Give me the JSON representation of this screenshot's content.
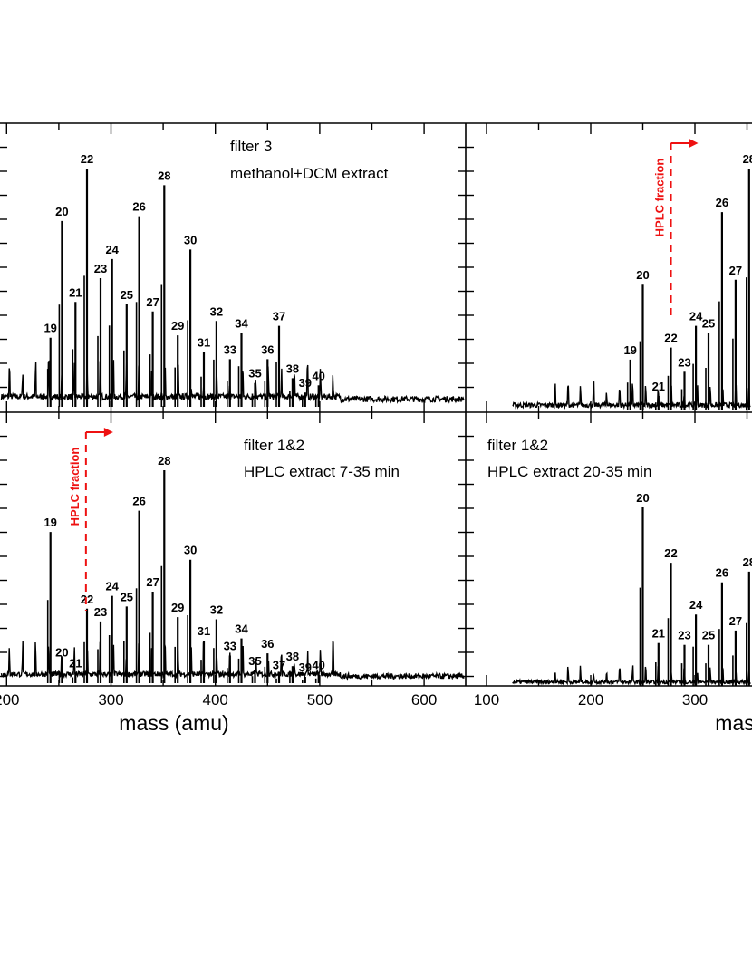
{
  "chart_data": {
    "type": "line",
    "xlabel": "mass (amu)",
    "colors": {
      "trace": "#000000",
      "hplc": "#ee1111"
    },
    "panels": [
      {
        "id": "top-left",
        "caption": [
          "filter 3",
          "methanol+DCM extract"
        ],
        "xlim": [
          160,
          640
        ],
        "hplc_marker": null,
        "peaks": [
          {
            "label": "19",
            "x": 242,
            "y": 0.29
          },
          {
            "label": "20",
            "x": 253,
            "y": 0.78
          },
          {
            "label": "21",
            "x": 266,
            "y": 0.44
          },
          {
            "label": "22",
            "x": 277,
            "y": 1.0
          },
          {
            "label": "23",
            "x": 290,
            "y": 0.54
          },
          {
            "label": "24",
            "x": 301,
            "y": 0.62
          },
          {
            "label": "25",
            "x": 315,
            "y": 0.43
          },
          {
            "label": "26",
            "x": 327,
            "y": 0.8
          },
          {
            "label": "27",
            "x": 340,
            "y": 0.4
          },
          {
            "label": "28",
            "x": 351,
            "y": 0.93
          },
          {
            "label": "29",
            "x": 364,
            "y": 0.3
          },
          {
            "label": "30",
            "x": 376,
            "y": 0.66
          },
          {
            "label": "31",
            "x": 389,
            "y": 0.23
          },
          {
            "label": "32",
            "x": 401,
            "y": 0.36
          },
          {
            "label": "33",
            "x": 414,
            "y": 0.2
          },
          {
            "label": "34",
            "x": 425,
            "y": 0.31
          },
          {
            "label": "35",
            "x": 438,
            "y": 0.1
          },
          {
            "label": "36",
            "x": 450,
            "y": 0.2
          },
          {
            "label": "37",
            "x": 461,
            "y": 0.34
          },
          {
            "label": "38",
            "x": 474,
            "y": 0.12
          },
          {
            "label": "39",
            "x": 486,
            "y": 0.06
          },
          {
            "label": "40",
            "x": 499,
            "y": 0.09
          }
        ]
      },
      {
        "id": "top-right",
        "caption": [],
        "xlim": [
          75,
          400
        ],
        "hplc_marker": {
          "label": "HPLC fraction",
          "x": 277
        },
        "peaks": [
          {
            "label": "19",
            "x": 238,
            "y": 0.21
          },
          {
            "label": "20",
            "x": 250,
            "y": 0.52
          },
          {
            "label": "21",
            "x": 265,
            "y": 0.06
          },
          {
            "label": "22",
            "x": 277,
            "y": 0.26
          },
          {
            "label": "23",
            "x": 290,
            "y": 0.16
          },
          {
            "label": "24",
            "x": 301,
            "y": 0.35
          },
          {
            "label": "25",
            "x": 313,
            "y": 0.32
          },
          {
            "label": "26",
            "x": 326,
            "y": 0.82
          },
          {
            "label": "27",
            "x": 339,
            "y": 0.54
          },
          {
            "label": "28",
            "x": 352,
            "y": 1.0
          }
        ]
      },
      {
        "id": "bottom-left",
        "caption": [
          "filter 1&2",
          "HPLC extract 7-35 min"
        ],
        "xlim": [
          160,
          640
        ],
        "hplc_marker": {
          "label": "HPLC fraction",
          "x": 276
        },
        "peaks": [
          {
            "label": "19",
            "x": 242,
            "y": 0.71
          },
          {
            "label": "20",
            "x": 253,
            "y": 0.1
          },
          {
            "label": "21",
            "x": 266,
            "y": 0.05
          },
          {
            "label": "22",
            "x": 277,
            "y": 0.35
          },
          {
            "label": "23",
            "x": 290,
            "y": 0.29
          },
          {
            "label": "24",
            "x": 301,
            "y": 0.41
          },
          {
            "label": "25",
            "x": 315,
            "y": 0.36
          },
          {
            "label": "26",
            "x": 327,
            "y": 0.81
          },
          {
            "label": "27",
            "x": 340,
            "y": 0.43
          },
          {
            "label": "28",
            "x": 351,
            "y": 1.0
          },
          {
            "label": "29",
            "x": 364,
            "y": 0.31
          },
          {
            "label": "30",
            "x": 376,
            "y": 0.58
          },
          {
            "label": "31",
            "x": 389,
            "y": 0.2
          },
          {
            "label": "32",
            "x": 401,
            "y": 0.3
          },
          {
            "label": "33",
            "x": 414,
            "y": 0.13
          },
          {
            "label": "34",
            "x": 425,
            "y": 0.21
          },
          {
            "label": "35",
            "x": 438,
            "y": 0.06
          },
          {
            "label": "36",
            "x": 450,
            "y": 0.14
          },
          {
            "label": "37",
            "x": 461,
            "y": 0.04
          },
          {
            "label": "38",
            "x": 474,
            "y": 0.08
          },
          {
            "label": "39",
            "x": 486,
            "y": 0.03
          },
          {
            "label": "40",
            "x": 499,
            "y": 0.04
          }
        ]
      },
      {
        "id": "bottom-right",
        "caption": [
          "filter 1&2",
          "HPLC extract 20-35 min"
        ],
        "xlim": [
          75,
          400
        ],
        "hplc_marker": null,
        "peaks": [
          {
            "label": "20",
            "x": 250,
            "y": 1.0
          },
          {
            "label": "21",
            "x": 265,
            "y": 0.24
          },
          {
            "label": "22",
            "x": 277,
            "y": 0.69
          },
          {
            "label": "23",
            "x": 290,
            "y": 0.23
          },
          {
            "label": "24",
            "x": 301,
            "y": 0.4
          },
          {
            "label": "25",
            "x": 313,
            "y": 0.23
          },
          {
            "label": "26",
            "x": 326,
            "y": 0.58
          },
          {
            "label": "27",
            "x": 339,
            "y": 0.31
          },
          {
            "label": "28",
            "x": 352,
            "y": 0.64
          }
        ]
      }
    ],
    "x_ticks_left": [
      "200",
      "300",
      "400",
      "500",
      "600"
    ],
    "x_ticks_right": [
      "100",
      "200",
      "300"
    ],
    "grid": false
  }
}
